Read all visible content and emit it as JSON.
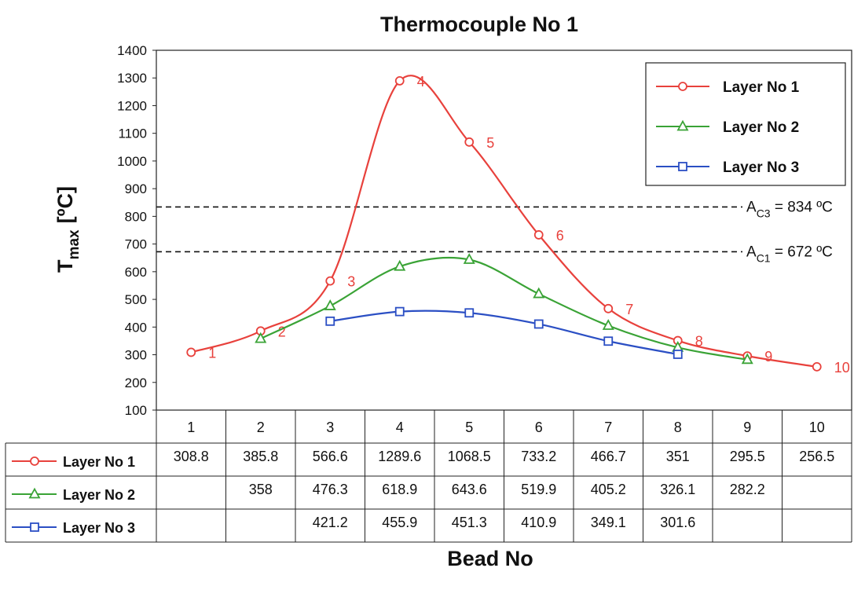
{
  "chart_data": {
    "type": "line",
    "title": "Thermocouple No 1",
    "xlabel": "Bead No",
    "ylabel_main": "T",
    "ylabel_sub": "max",
    "ylabel_unit": "[ºC]",
    "ylim": [
      100,
      1400
    ],
    "yticks": [
      100,
      200,
      300,
      400,
      500,
      600,
      700,
      800,
      900,
      1000,
      1100,
      1200,
      1300,
      1400
    ],
    "categories": [
      "1",
      "2",
      "3",
      "4",
      "5",
      "6",
      "7",
      "8",
      "9",
      "10"
    ],
    "grid": false,
    "legend_position": "top-right",
    "series": [
      {
        "name": "Layer No 1",
        "color": "#e8413c",
        "marker": "circle",
        "values": [
          308.8,
          385.8,
          566.6,
          1289.6,
          1068.5,
          733.2,
          466.7,
          351,
          295.5,
          256.5
        ],
        "point_labels": [
          "1",
          "2",
          "3",
          "4",
          "5",
          "6",
          "7",
          "8",
          "9",
          "10"
        ]
      },
      {
        "name": "Layer No 2",
        "color": "#3aa336",
        "marker": "triangle",
        "values": [
          null,
          358,
          476.3,
          618.9,
          643.6,
          519.9,
          405.2,
          326.1,
          282.2,
          null
        ]
      },
      {
        "name": "Layer No 3",
        "color": "#2b4fc4",
        "marker": "square",
        "values": [
          null,
          null,
          421.2,
          455.9,
          451.3,
          410.9,
          349.1,
          301.6,
          null,
          null
        ]
      }
    ],
    "reference_lines": [
      {
        "value": 834,
        "label_main": "A",
        "label_sub": "C3",
        "label_rest": " = 834 ºC"
      },
      {
        "value": 672,
        "label_main": "A",
        "label_sub": "C1",
        "label_rest": " = 672 ºC"
      }
    ],
    "table": {
      "header": [
        "1",
        "2",
        "3",
        "4",
        "5",
        "6",
        "7",
        "8",
        "9",
        "10"
      ],
      "rows": [
        {
          "label": "Layer No 1",
          "cells": [
            "308.8",
            "385.8",
            "566.6",
            "1289.6",
            "1068.5",
            "733.2",
            "466.7",
            "351",
            "295.5",
            "256.5"
          ]
        },
        {
          "label": "Layer No 2",
          "cells": [
            "",
            "358",
            "476.3",
            "618.9",
            "643.6",
            "519.9",
            "405.2",
            "326.1",
            "282.2",
            ""
          ]
        },
        {
          "label": "Layer No 3",
          "cells": [
            "",
            "",
            "421.2",
            "455.9",
            "451.3",
            "410.9",
            "349.1",
            "301.6",
            "",
            ""
          ]
        }
      ]
    }
  }
}
